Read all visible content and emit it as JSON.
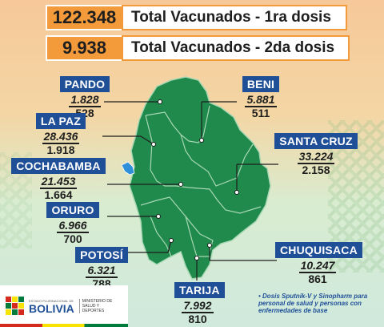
{
  "summary": {
    "first_dose_count": "122.348",
    "first_dose_label": "Total Vacunados - 1ra dosis",
    "second_dose_count": "9.938",
    "second_dose_label": "Total Vacunados - 2da dosis"
  },
  "departments": [
    {
      "id": "pando",
      "name": "PANDO",
      "dose1": "1.828",
      "dose2": "528"
    },
    {
      "id": "beni",
      "name": "BENI",
      "dose1": "5.881",
      "dose2": "511"
    },
    {
      "id": "la-paz",
      "name": "LA PAZ",
      "dose1": "28.436",
      "dose2": "1.918"
    },
    {
      "id": "santa-cruz",
      "name": "SANTA CRUZ",
      "dose1": "33.224",
      "dose2": "2.158"
    },
    {
      "id": "cochabamba",
      "name": "COCHABAMBA",
      "dose1": "21.453",
      "dose2": "1.664"
    },
    {
      "id": "oruro",
      "name": "ORURO",
      "dose1": "6.966",
      "dose2": "700"
    },
    {
      "id": "potosi",
      "name": "POTOSÍ",
      "dose1": "6.321",
      "dose2": "788"
    },
    {
      "id": "chuquisaca",
      "name": "CHUQUISACA",
      "dose1": "10.247",
      "dose2": "861"
    },
    {
      "id": "tarija",
      "name": "TARIJA",
      "dose1": "7.992",
      "dose2": "810"
    }
  ],
  "note": "• Dosis Sputnik-V y Sinopharm para personal de salud y personas con enfermedades de base",
  "footer": {
    "state_line": "ESTADO PLURINACIONAL DE",
    "country": "BOLIVIA",
    "ministry": "MINISTERIO DE SALUD Y DEPORTES"
  },
  "colors": {
    "map_fill": "#1f8a4c",
    "map_border": "#a8d8b4",
    "label_bg": "#1f4f97",
    "count_bg": "#f39a3a"
  }
}
